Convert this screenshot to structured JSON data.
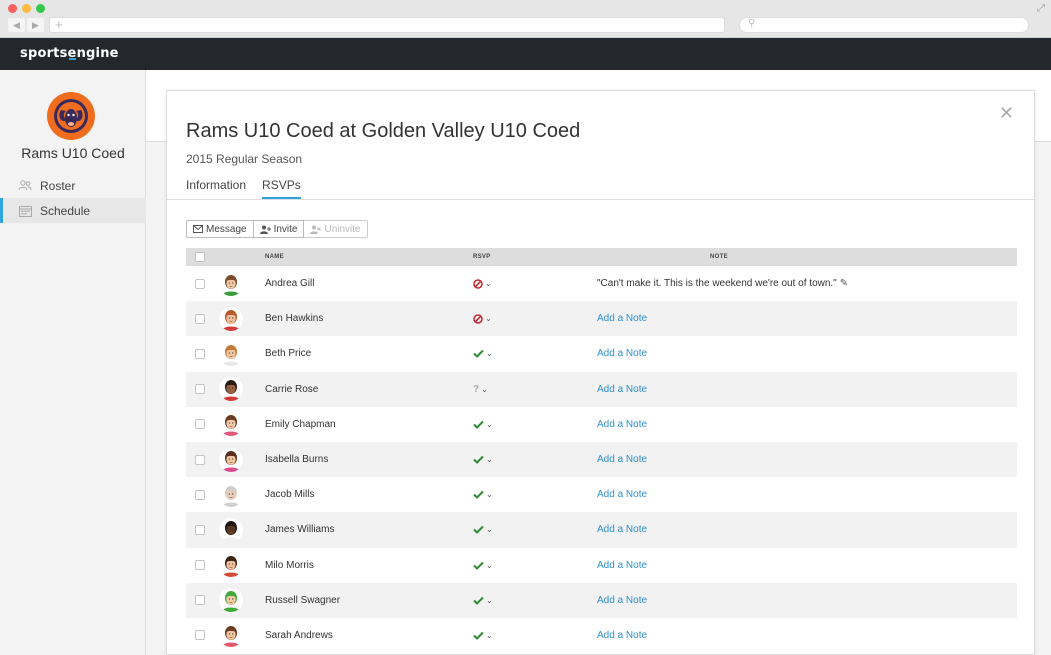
{
  "browser": {
    "new_tab_icon": "plus-icon",
    "search_icon": "magnifier-icon"
  },
  "app": {
    "logo": "sportsengine",
    "brand_color": "#2fa3e0",
    "bar_color": "#24282c"
  },
  "sidebar": {
    "team_name": "Rams U10 Coed",
    "team_logo_color": "#f06d1f",
    "items": [
      {
        "label": "Roster",
        "icon": "people-icon"
      },
      {
        "label": "Schedule",
        "icon": "calendar-icon",
        "active": true
      }
    ]
  },
  "modal": {
    "title": "Rams U10 Coed at Golden Valley U10 Coed",
    "subtitle": "2015 Regular Season",
    "tabs": [
      {
        "label": "Information"
      },
      {
        "label": "RSVPs",
        "active": true
      }
    ],
    "toolbar": {
      "message": "Message",
      "invite": "Invite",
      "uninvite": "Uninvite"
    },
    "table": {
      "headers": {
        "name": "NAME",
        "rsvp": "RSVP",
        "note": "NOTE"
      },
      "add_note_label": "Add a Note",
      "rows": [
        {
          "name": "Andrea Gill",
          "rsvp": "no",
          "note": "\"Can't make it. This is the weekend we're out of town.\"",
          "skin": "#f2c9a6",
          "hair": "#7a4a2a",
          "shirt": "#3a9b3a"
        },
        {
          "name": "Ben Hawkins",
          "rsvp": "no",
          "note": "",
          "skin": "#f0c19e",
          "hair": "#b85a2a",
          "shirt": "#d23b3b"
        },
        {
          "name": "Beth Price",
          "rsvp": "yes",
          "note": "",
          "skin": "#f2c6a0",
          "hair": "#c07a3a",
          "shirt": "#e8e8e8"
        },
        {
          "name": "Carrie Rose",
          "rsvp": "maybe",
          "note": "",
          "skin": "#9a6240",
          "hair": "#2b1a10",
          "shirt": "#d43a3a"
        },
        {
          "name": "Emily Chapman",
          "rsvp": "yes",
          "note": "",
          "skin": "#f3c9a8",
          "hair": "#6b3a22",
          "shirt": "#e05a7a"
        },
        {
          "name": "Isabella Burns",
          "rsvp": "yes",
          "note": "",
          "skin": "#f3c6a3",
          "hair": "#5a2e1c",
          "shirt": "#e04a8a"
        },
        {
          "name": "Jacob Mills",
          "rsvp": "yes",
          "note": "",
          "skin": "#e8cdb8",
          "hair": "#cfcfcf",
          "shirt": "#cfcfcf"
        },
        {
          "name": "James Williams",
          "rsvp": "yes",
          "note": "",
          "skin": "#5a3624",
          "hair": "#1e130c",
          "shirt": "#f0f0f0"
        },
        {
          "name": "Milo Morris",
          "rsvp": "yes",
          "note": "",
          "skin": "#f0c19e",
          "hair": "#3a2214",
          "shirt": "#d44a3a"
        },
        {
          "name": "Russell Swagner",
          "rsvp": "yes",
          "note": "",
          "skin": "#f3c9a6",
          "hair": "#3ea83a",
          "shirt": "#3ea83a"
        },
        {
          "name": "Sarah Andrews",
          "rsvp": "yes",
          "note": "",
          "skin": "#f2c6a0",
          "hair": "#6a3a22",
          "shirt": "#e05a6a"
        }
      ]
    }
  }
}
